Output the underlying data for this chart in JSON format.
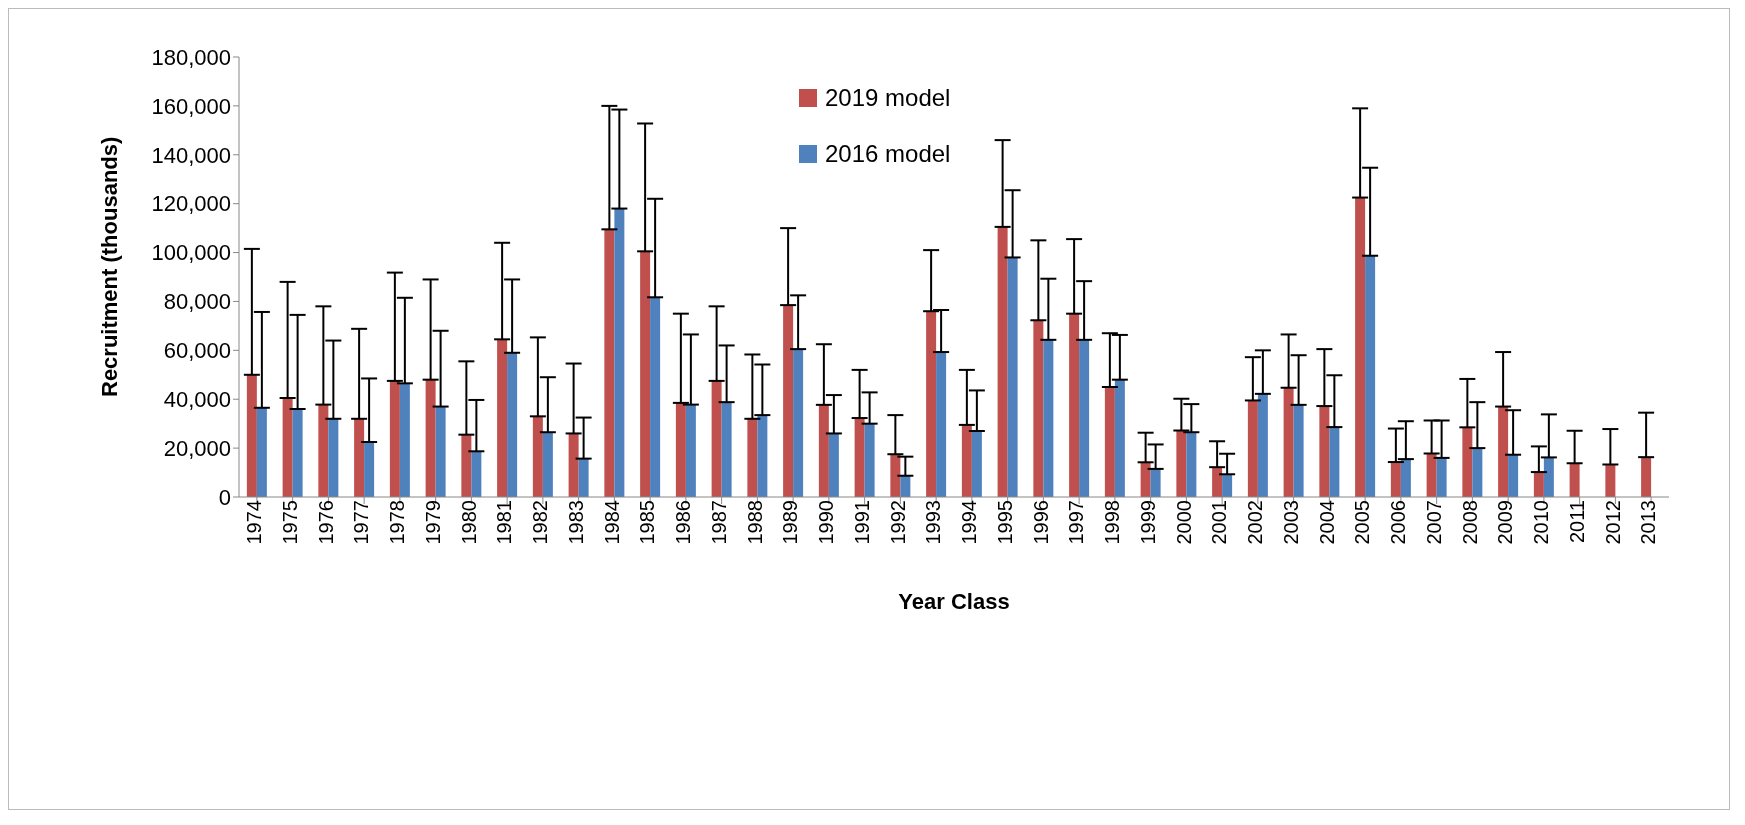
{
  "chart_data": {
    "type": "bar",
    "xlabel": "Year Class",
    "ylabel": "Recruitment (thousands)",
    "categories": [
      "1974",
      "1975",
      "1976",
      "1977",
      "1978",
      "1979",
      "1980",
      "1981",
      "1982",
      "1983",
      "1984",
      "1985",
      "1986",
      "1987",
      "1988",
      "1989",
      "1990",
      "1991",
      "1992",
      "1993",
      "1994",
      "1995",
      "1996",
      "1997",
      "1998",
      "1999",
      "2000",
      "2001",
      "2002",
      "2003",
      "2004",
      "2005",
      "2006",
      "2007",
      "2008",
      "2009",
      "2010",
      "2011",
      "2012",
      "2013"
    ],
    "series": [
      {
        "name": "2019 model",
        "color": "#c0504d",
        "values": [
          50000,
          40500,
          37800,
          32000,
          47500,
          48000,
          25500,
          64500,
          33000,
          26000,
          109500,
          100500,
          38500,
          47500,
          32000,
          78500,
          37700,
          32300,
          17500,
          76000,
          29500,
          110500,
          72300,
          75000,
          45000,
          14200,
          27200,
          12200,
          39500,
          44700,
          37200,
          122500,
          14300,
          17800,
          28500,
          37000,
          10200,
          13800,
          13300,
          16300
        ],
        "errors": [
          [
            50000,
            101500
          ],
          [
            40500,
            88000
          ],
          [
            37800,
            78000
          ],
          [
            32000,
            68800
          ],
          [
            47500,
            91800
          ],
          [
            48000,
            89000
          ],
          [
            25500,
            55500
          ],
          [
            64500,
            104000
          ],
          [
            33000,
            65300
          ],
          [
            26000,
            54600
          ],
          [
            109500,
            160000
          ],
          [
            100500,
            152800
          ],
          [
            38500,
            75000
          ],
          [
            47500,
            78000
          ],
          [
            32000,
            58300
          ],
          [
            78500,
            110000
          ],
          [
            37700,
            62500
          ],
          [
            32300,
            52000
          ],
          [
            17500,
            33500
          ],
          [
            76000,
            101000
          ],
          [
            29500,
            52000
          ],
          [
            110500,
            146000
          ],
          [
            72300,
            105000
          ],
          [
            75000,
            105500
          ],
          [
            45000,
            67000
          ],
          [
            14200,
            26300
          ],
          [
            27200,
            40200
          ],
          [
            12200,
            22800
          ],
          [
            39500,
            57200
          ],
          [
            44700,
            66500
          ],
          [
            37200,
            60500
          ],
          [
            122500,
            159000
          ],
          [
            14300,
            28000
          ],
          [
            17800,
            31300
          ],
          [
            28500,
            48300
          ],
          [
            37000,
            59300
          ],
          [
            10200,
            20700
          ],
          [
            13800,
            27100
          ],
          [
            13300,
            27800
          ],
          [
            16300,
            34500
          ]
        ]
      },
      {
        "name": "2016 model",
        "color": "#4f81bd",
        "values": [
          36500,
          36000,
          32000,
          22500,
          46500,
          37000,
          18700,
          59000,
          26500,
          15700,
          118000,
          81700,
          37800,
          38800,
          33500,
          60500,
          26000,
          30000,
          8700,
          59300,
          27000,
          98000,
          64300,
          64300,
          48000,
          11500,
          26500,
          9300,
          42200,
          37700,
          28600,
          98700,
          15500,
          16000,
          20000,
          17300,
          16200,
          null,
          null,
          null
        ],
        "errors": [
          [
            36500,
            75700
          ],
          [
            36000,
            74500
          ],
          [
            32000,
            64000
          ],
          [
            22500,
            48500
          ],
          [
            46500,
            81500
          ],
          [
            37000,
            68000
          ],
          [
            18700,
            39700
          ],
          [
            59000,
            89000
          ],
          [
            26500,
            49000
          ],
          [
            15700,
            32500
          ],
          [
            118000,
            158500
          ],
          [
            81700,
            122000
          ],
          [
            37800,
            66500
          ],
          [
            38800,
            62000
          ],
          [
            33500,
            54200
          ],
          [
            60500,
            82500
          ],
          [
            26000,
            41700
          ],
          [
            30000,
            42800
          ],
          [
            8700,
            16500
          ],
          [
            59300,
            76500
          ],
          [
            27000,
            43600
          ],
          [
            98000,
            125500
          ],
          [
            64300,
            89300
          ],
          [
            64300,
            88300
          ],
          [
            48000,
            66300
          ],
          [
            11500,
            21500
          ],
          [
            26500,
            38000
          ],
          [
            9300,
            17700
          ],
          [
            42200,
            60000
          ],
          [
            37700,
            58000
          ],
          [
            28600,
            49800
          ],
          [
            98700,
            134700
          ],
          [
            15500,
            31000
          ],
          [
            16000,
            31300
          ],
          [
            20000,
            38800
          ],
          [
            17300,
            35500
          ],
          [
            16200,
            33800
          ],
          null,
          null,
          null
        ]
      }
    ],
    "ylim": [
      0,
      180000
    ],
    "yticks": [
      0,
      {
        "value": 20000,
        "label": "20,000"
      },
      {
        "value": 40000,
        "label": "40,000"
      },
      {
        "value": 60000,
        "label": "60,000"
      },
      {
        "value": 80000,
        "label": "80,000"
      },
      {
        "value": 100000,
        "label": "100,000"
      },
      {
        "value": 120000,
        "label": "120,000"
      },
      {
        "value": 140000,
        "label": "140,000"
      },
      {
        "value": 160000,
        "label": "160,000"
      },
      {
        "value": 180000,
        "label": "180,000"
      }
    ],
    "grid": false,
    "legend": "top"
  }
}
